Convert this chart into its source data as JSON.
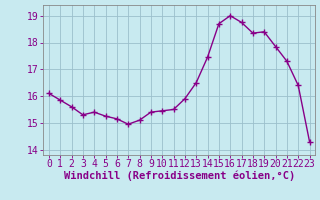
{
  "x": [
    0,
    1,
    2,
    3,
    4,
    5,
    6,
    7,
    8,
    9,
    10,
    11,
    12,
    13,
    14,
    15,
    16,
    17,
    18,
    19,
    20,
    21,
    22,
    23
  ],
  "y": [
    16.1,
    15.85,
    15.6,
    15.3,
    15.4,
    15.25,
    15.15,
    14.95,
    15.1,
    15.4,
    15.45,
    15.5,
    15.9,
    16.5,
    17.45,
    18.7,
    19.0,
    18.75,
    18.35,
    18.4,
    17.85,
    17.3,
    16.4,
    14.3
  ],
  "line_color": "#880088",
  "marker": "+",
  "markersize": 4,
  "markeredgewidth": 1.0,
  "linewidth": 1.0,
  "bg_color": "#c8eaf0",
  "grid_color": "#9bbfcc",
  "xlabel": "Windchill (Refroidissement éolien,°C)",
  "xlabel_fontsize": 7.5,
  "tick_fontsize": 7,
  "xlim": [
    -0.5,
    23.5
  ],
  "ylim": [
    13.8,
    19.4
  ],
  "yticks": [
    14,
    15,
    16,
    17,
    18,
    19
  ],
  "xticks": [
    0,
    1,
    2,
    3,
    4,
    5,
    6,
    7,
    8,
    9,
    10,
    11,
    12,
    13,
    14,
    15,
    16,
    17,
    18,
    19,
    20,
    21,
    22,
    23
  ]
}
